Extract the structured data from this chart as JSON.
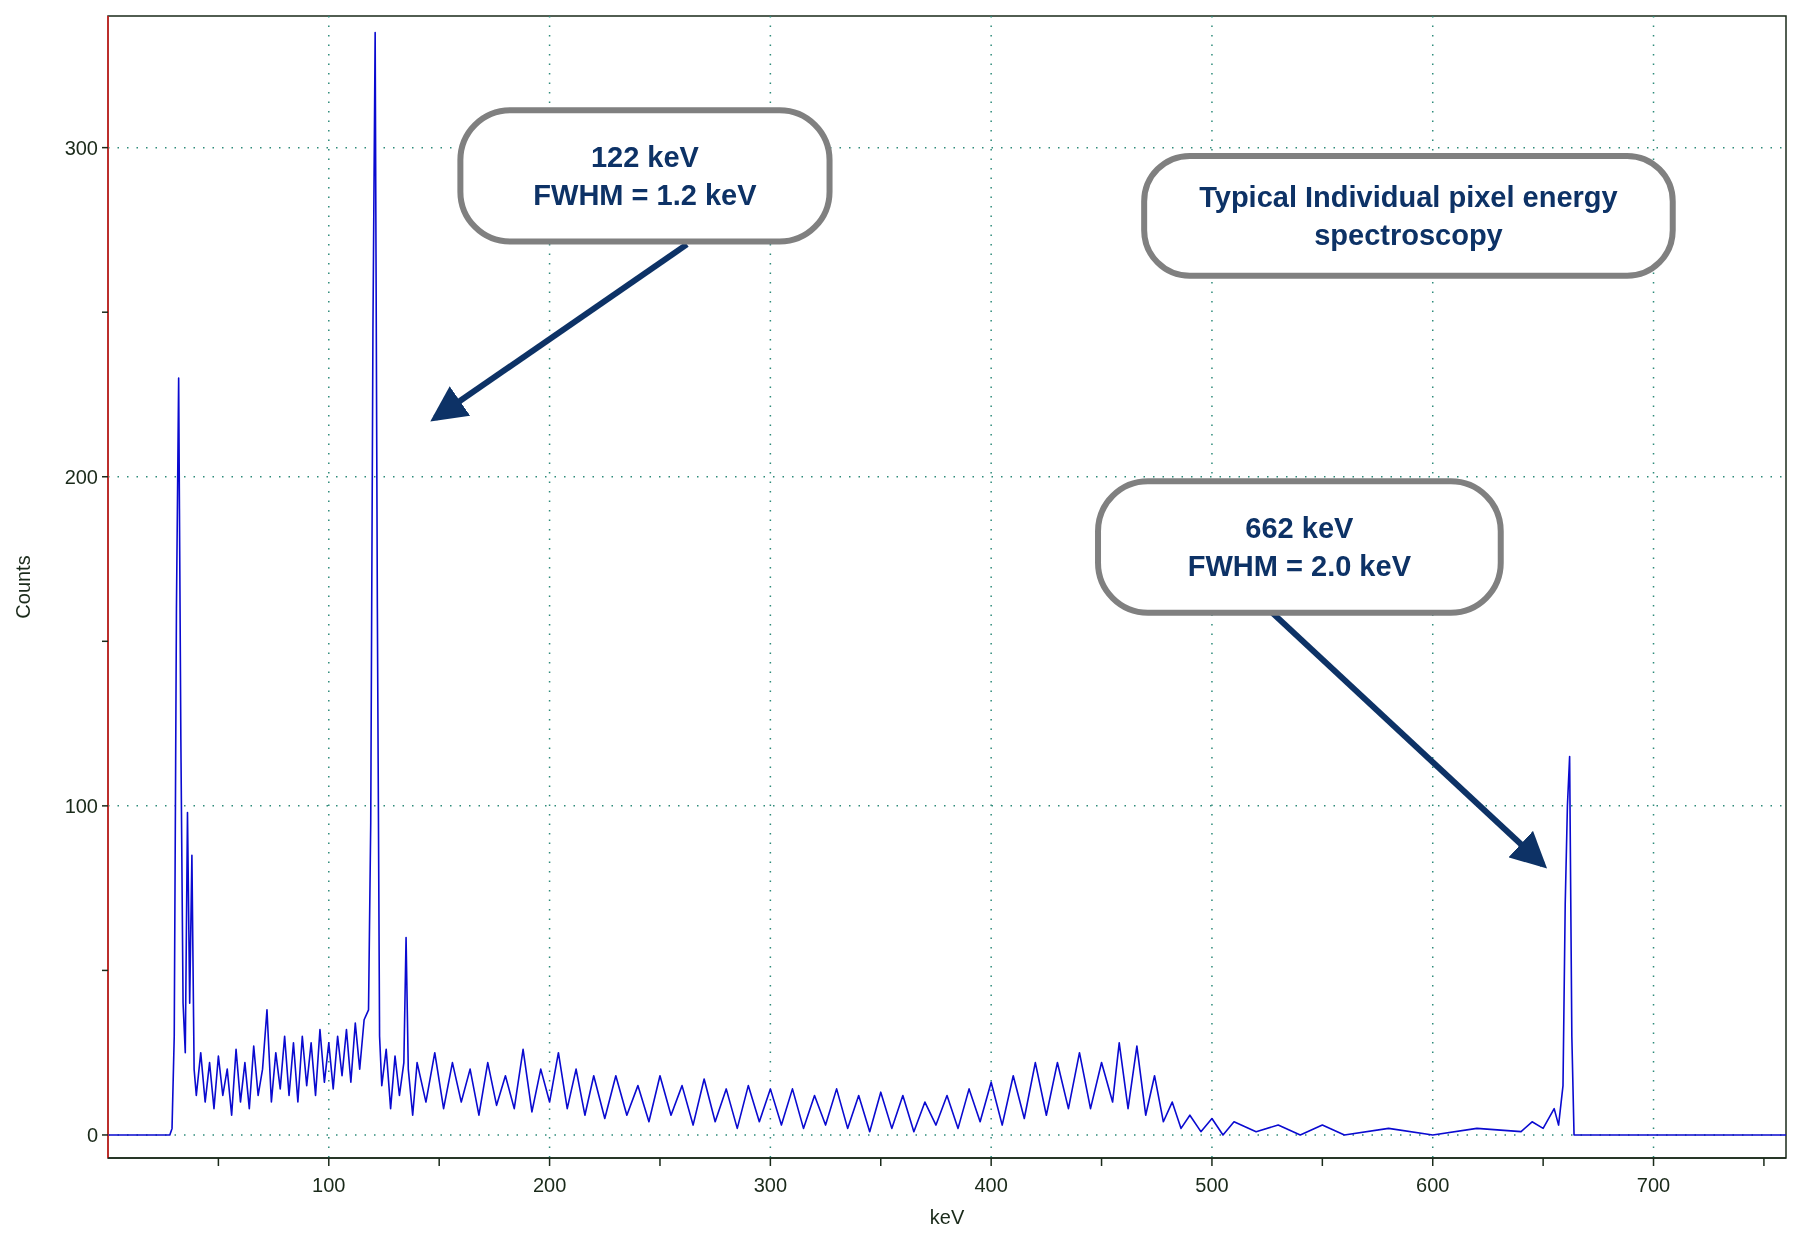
{
  "chart_data": {
    "type": "line",
    "xlabel": "keV",
    "ylabel": "Counts",
    "xlim": [
      0,
      760
    ],
    "ylim": [
      -7,
      340
    ],
    "xticks": [
      {
        "value": 50,
        "label": null
      },
      100,
      {
        "value": 150,
        "label": null
      },
      200,
      {
        "value": 250,
        "label": null
      },
      300,
      {
        "value": 350,
        "label": null
      },
      400,
      {
        "value": 450,
        "label": null
      },
      500,
      {
        "value": 550,
        "label": null
      },
      600,
      {
        "value": 650,
        "label": null
      },
      700,
      {
        "value": 750,
        "label": null
      }
    ],
    "yticks": [
      0,
      {
        "value": 50,
        "label": null
      },
      100,
      {
        "value": 150,
        "label": null
      },
      200,
      {
        "value": 250,
        "label": null
      },
      300
    ],
    "grid": true,
    "line_style": "solid",
    "series": [
      {
        "color": "#0a0ad0",
        "x": [
          0,
          28,
          29,
          30,
          31,
          32,
          33,
          34,
          35,
          36,
          37,
          38,
          39,
          40,
          42,
          44,
          46,
          48,
          50,
          52,
          54,
          56,
          58,
          60,
          62,
          64,
          66,
          68,
          70,
          72,
          74,
          76,
          78,
          80,
          82,
          84,
          86,
          88,
          90,
          92,
          94,
          96,
          98,
          100,
          102,
          104,
          106,
          108,
          110,
          112,
          114,
          116,
          118,
          119,
          120,
          121,
          122,
          123,
          124,
          126,
          128,
          130,
          132,
          134,
          135,
          136,
          138,
          140,
          144,
          148,
          152,
          156,
          160,
          164,
          168,
          172,
          176,
          180,
          184,
          188,
          192,
          196,
          200,
          204,
          208,
          212,
          216,
          220,
          225,
          230,
          235,
          240,
          245,
          250,
          255,
          260,
          265,
          270,
          275,
          280,
          285,
          290,
          295,
          300,
          305,
          310,
          315,
          320,
          325,
          330,
          335,
          340,
          345,
          350,
          355,
          360,
          365,
          370,
          375,
          380,
          385,
          390,
          395,
          400,
          405,
          410,
          415,
          420,
          425,
          430,
          435,
          440,
          445,
          450,
          455,
          458,
          462,
          466,
          470,
          474,
          478,
          482,
          486,
          490,
          495,
          500,
          505,
          510,
          520,
          530,
          540,
          550,
          560,
          580,
          600,
          620,
          640,
          645,
          650,
          655,
          657,
          659,
          660,
          661,
          662,
          663,
          664,
          700,
          730,
          760
        ],
        "values": [
          0,
          0,
          2,
          30,
          160,
          230,
          120,
          40,
          25,
          98,
          40,
          85,
          20,
          12,
          25,
          10,
          22,
          8,
          24,
          12,
          20,
          6,
          26,
          10,
          22,
          8,
          27,
          12,
          20,
          38,
          10,
          25,
          14,
          30,
          12,
          28,
          10,
          30,
          15,
          28,
          12,
          32,
          16,
          28,
          14,
          30,
          18,
          32,
          16,
          34,
          20,
          35,
          38,
          95,
          245,
          335,
          160,
          30,
          15,
          26,
          8,
          24,
          12,
          22,
          60,
          20,
          6,
          22,
          10,
          25,
          8,
          22,
          10,
          20,
          6,
          22,
          9,
          18,
          8,
          26,
          7,
          20,
          10,
          25,
          8,
          20,
          6,
          18,
          5,
          18,
          6,
          15,
          4,
          18,
          6,
          15,
          3,
          17,
          4,
          14,
          2,
          15,
          4,
          14,
          3,
          14,
          2,
          12,
          3,
          14,
          2,
          12,
          1,
          13,
          2,
          12,
          1,
          10,
          3,
          12,
          2,
          14,
          4,
          16,
          3,
          18,
          5,
          22,
          6,
          22,
          8,
          25,
          8,
          22,
          10,
          28,
          8,
          27,
          6,
          18,
          4,
          10,
          2,
          6,
          1,
          5,
          0,
          4,
          1,
          3,
          0,
          3,
          0,
          2,
          0,
          2,
          1,
          4,
          2,
          8,
          3,
          15,
          70,
          100,
          115,
          30,
          0,
          0,
          0,
          0
        ]
      }
    ],
    "annotations": [
      "122 keV\nFWHM = 1.2 keV",
      "Typical Individual pixel energy\nspectroscopy",
      "662 keV\nFWHM = 2.0 keV"
    ]
  }
}
